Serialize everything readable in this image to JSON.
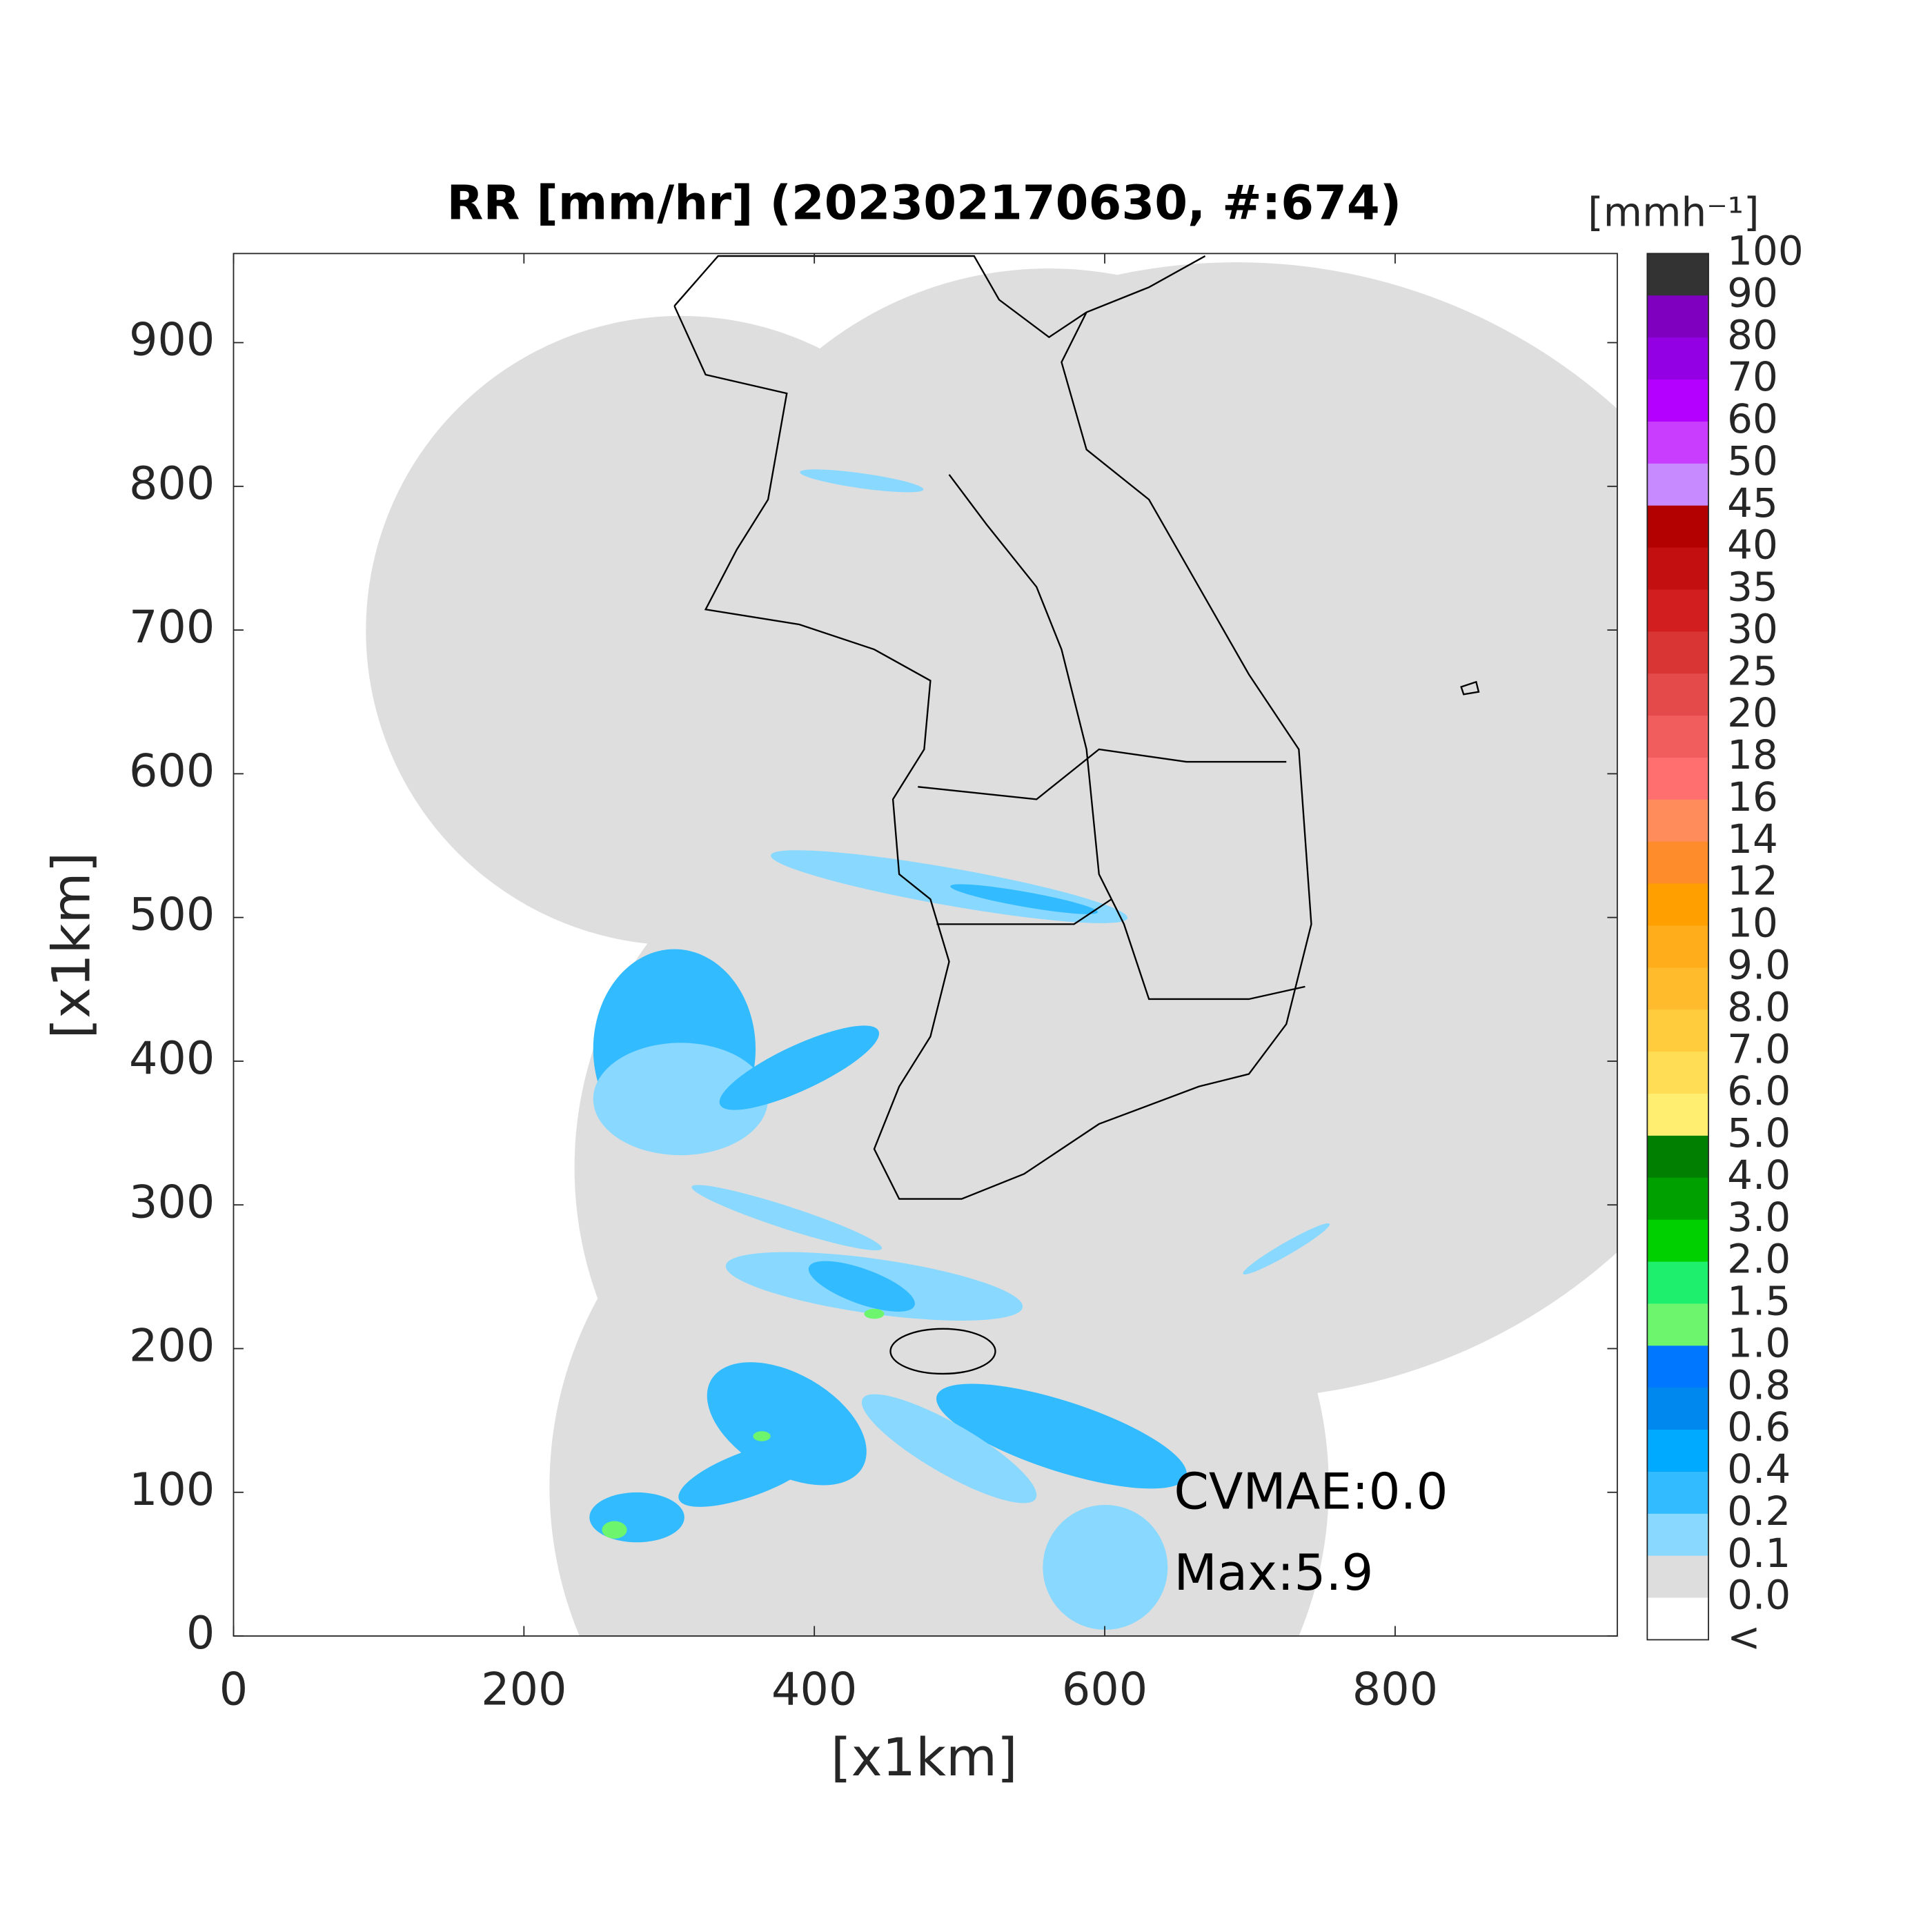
{
  "chart_data": {
    "type": "map",
    "title": "RR [mm/hr] (202302170630, #:674)",
    "x_label": "[x1km]",
    "y_label": "[x1km]",
    "xlim": [
      0,
      953
    ],
    "ylim": [
      0,
      962
    ],
    "xticks": [
      0,
      200,
      400,
      600,
      800
    ],
    "yticks": [
      0,
      100,
      200,
      300,
      400,
      500,
      600,
      700,
      800,
      900
    ],
    "annotations": [
      "CVMAE:0.0",
      "Max:5.9"
    ],
    "colorbar": {
      "label": "[mmh⁻¹]",
      "ticks": [
        100,
        90,
        80,
        70,
        60,
        50,
        45,
        40,
        35,
        30,
        25,
        20,
        18,
        16,
        14,
        12,
        10,
        {
          "value": 9,
          "label": "9.0"
        },
        {
          "value": 8,
          "label": "8.0"
        },
        {
          "value": 7,
          "label": "7.0"
        },
        {
          "value": 6,
          "label": "6.0"
        },
        {
          "value": 5,
          "label": "5.0"
        },
        {
          "value": 4,
          "label": "4.0"
        },
        {
          "value": 3,
          "label": "3.0"
        },
        {
          "value": 2,
          "label": "2.0"
        },
        1.5,
        {
          "value": 1,
          "label": "1.0"
        },
        0.8,
        0.6,
        0.4,
        0.2,
        0.1,
        {
          "value": 0,
          "label": "0.0"
        },
        "<"
      ],
      "colors": [
        "#333333",
        "#7f00bf",
        "#9300e4",
        "#b300ff",
        "#c93dff",
        "#c78bff",
        "#b30000",
        "#c30f0f",
        "#d21e1e",
        "#da3535",
        "#e54a4a",
        "#f15c5c",
        "#ff6f6f",
        "#ff8c5a",
        "#ff8c2a",
        "#ffa000",
        "#ffad1a",
        "#ffbb2b",
        "#ffcc3d",
        "#ffdd55",
        "#ffee70",
        "#007f00",
        "#00a000",
        "#00d000",
        "#1ef06e",
        "#6df66d",
        "#0077ff",
        "#0088ee",
        "#00aaff",
        "#33bbff",
        "#88d8ff",
        "#dddddd",
        "#ffffff"
      ]
    }
  }
}
